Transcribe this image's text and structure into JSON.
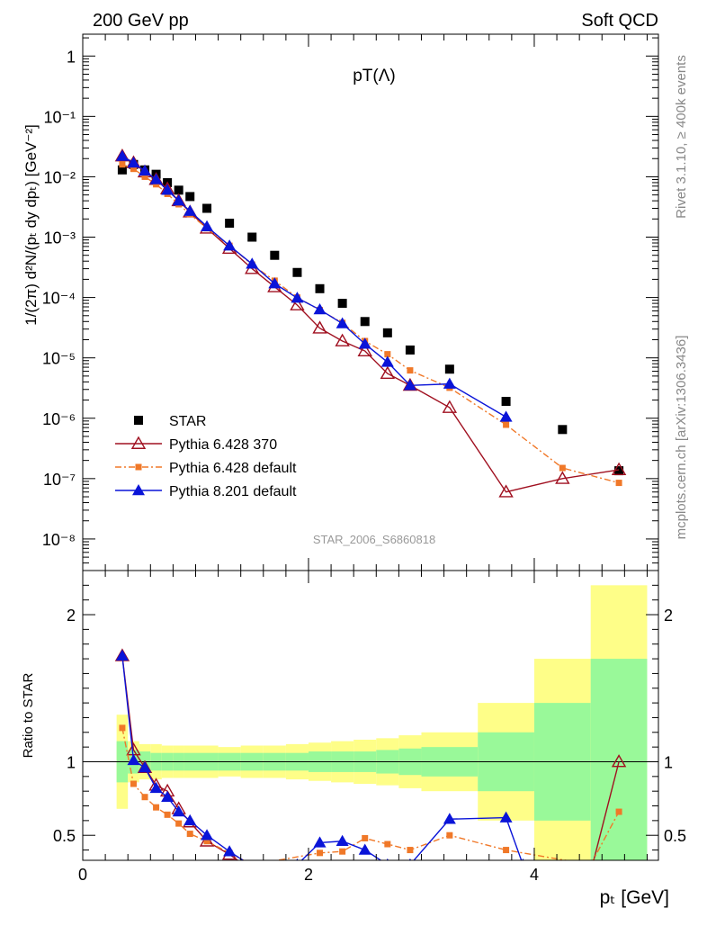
{
  "header": {
    "left": "200 GeV pp",
    "right": "Soft QCD"
  },
  "side": {
    "rivet": "Rivet 3.1.10, ≥ 400k events",
    "mcplots": "mcplots.cern.ch [arXiv:1306.3436]"
  },
  "chart_data": [
    {
      "type": "scatter",
      "title": "pT(Λ)",
      "watermark": "STAR_2006_S6860818",
      "ylabel": "1/(2π) d²N/(pₜ dy dpₜ) [GeV⁻²]",
      "xlim": [
        0,
        5.1
      ],
      "ylim": [
        3e-09,
        2.3
      ],
      "yscale": "log",
      "ytick_labels": [
        {
          "v": 1,
          "t": "1"
        },
        {
          "v": 0.1,
          "t": "10⁻¹"
        },
        {
          "v": 0.01,
          "t": "10⁻²"
        },
        {
          "v": 0.001,
          "t": "10⁻³"
        },
        {
          "v": 0.0001,
          "t": "10⁻⁴"
        },
        {
          "v": 1e-05,
          "t": "10⁻⁵"
        },
        {
          "v": 1e-06,
          "t": "10⁻⁶"
        },
        {
          "v": 1e-07,
          "t": "10⁻⁷"
        },
        {
          "v": 1e-08,
          "t": "10⁻⁸"
        }
      ],
      "legend_position": "bottom-left",
      "series": [
        {
          "name": "STAR",
          "color": "#000000",
          "marker": "square",
          "x": [
            0.35,
            0.45,
            0.55,
            0.65,
            0.75,
            0.85,
            0.95,
            1.1,
            1.3,
            1.5,
            1.7,
            1.9,
            2.1,
            2.3,
            2.5,
            2.7,
            2.9,
            3.25,
            3.75,
            4.25,
            4.75
          ],
          "y": [
            0.013,
            0.016,
            0.013,
            0.011,
            0.008,
            0.006,
            0.0047,
            0.003,
            0.0017,
            0.001,
            0.0005,
            0.00026,
            0.00014,
            8e-05,
            4e-05,
            2.6e-05,
            1.35e-05,
            6.5e-06,
            1.9e-06,
            6.5e-07,
            1.35e-07
          ]
        },
        {
          "name": "Pythia 6.428 370",
          "color": "#a01020",
          "marker": "triangle-open",
          "line": "solid",
          "x": [
            0.35,
            0.45,
            0.55,
            0.65,
            0.75,
            0.85,
            0.95,
            1.1,
            1.3,
            1.5,
            1.7,
            1.9,
            2.1,
            2.3,
            2.5,
            2.7,
            2.9,
            3.25,
            3.75,
            4.25,
            4.75
          ],
          "y": [
            0.022,
            0.017,
            0.012,
            0.009,
            0.0063,
            0.004,
            0.0026,
            0.0014,
            0.00065,
            0.0003,
            0.00015,
            7.5e-05,
            3.1e-05,
            1.9e-05,
            1.3e-05,
            5.5e-06,
            3.5e-06,
            1.5e-06,
            6e-08,
            1e-07,
            1.4e-07
          ]
        },
        {
          "name": "Pythia 6.428 default",
          "color": "#f07828",
          "marker": "square-small",
          "line": "dashdot",
          "x": [
            0.35,
            0.45,
            0.55,
            0.65,
            0.75,
            0.85,
            0.95,
            1.1,
            1.3,
            1.5,
            1.7,
            1.9,
            2.1,
            2.3,
            2.5,
            2.7,
            2.9,
            3.25,
            3.75,
            4.25,
            4.75
          ],
          "y": [
            0.016,
            0.0135,
            0.01,
            0.0075,
            0.0052,
            0.0035,
            0.0024,
            0.0014,
            0.00072,
            0.00035,
            0.00019,
            0.0001,
            6.2e-05,
            3.8e-05,
            1.9e-05,
            1.15e-05,
            6.2e-06,
            3.2e-06,
            7.8e-07,
            1.5e-07,
            8.5e-08
          ]
        },
        {
          "name": "Pythia 8.201 default",
          "color": "#0a14d8",
          "marker": "triangle",
          "line": "solid",
          "x": [
            0.35,
            0.45,
            0.55,
            0.65,
            0.75,
            0.85,
            0.95,
            1.1,
            1.3,
            1.5,
            1.7,
            1.9,
            2.1,
            2.3,
            2.5,
            2.7,
            2.9,
            3.25,
            3.75
          ],
          "y": [
            0.022,
            0.017,
            0.0125,
            0.009,
            0.006,
            0.004,
            0.0027,
            0.0015,
            0.00072,
            0.00036,
            0.00017,
            9.8e-05,
            6.3e-05,
            3.7e-05,
            1.7e-05,
            8.5e-06,
            3.5e-06,
            3.7e-06,
            1.05e-06
          ]
        }
      ]
    },
    {
      "type": "scatter",
      "ylabel": "Ratio to STAR",
      "xlabel": "pₜ [GeV]",
      "xlim": [
        0,
        5.1
      ],
      "ylim": [
        0.33,
        2.3
      ],
      "xtick_labels": [
        {
          "v": 0,
          "t": "0"
        },
        {
          "v": 2,
          "t": "2"
        },
        {
          "v": 4,
          "t": "4"
        }
      ],
      "ytick_labels": [
        {
          "v": 0.5,
          "t": "0.5"
        },
        {
          "v": 1,
          "t": "1"
        },
        {
          "v": 2,
          "t": "2"
        }
      ],
      "bands": {
        "edges": [
          0.3,
          0.4,
          0.5,
          0.6,
          0.7,
          0.8,
          0.9,
          1.0,
          1.2,
          1.4,
          1.6,
          1.8,
          2.0,
          2.2,
          2.4,
          2.6,
          2.8,
          3.0,
          3.5,
          4.0,
          4.5,
          5.0
        ],
        "inner_color": "#99f999",
        "outer_color": "#fefe88",
        "inner_half": [
          0.14,
          0.08,
          0.07,
          0.06,
          0.06,
          0.06,
          0.06,
          0.06,
          0.06,
          0.06,
          0.06,
          0.06,
          0.07,
          0.07,
          0.07,
          0.08,
          0.09,
          0.1,
          0.2,
          0.4,
          0.7
        ],
        "outer_half": [
          0.32,
          0.14,
          0.12,
          0.12,
          0.11,
          0.11,
          0.11,
          0.11,
          0.1,
          0.11,
          0.11,
          0.12,
          0.13,
          0.14,
          0.15,
          0.16,
          0.18,
          0.2,
          0.4,
          0.7,
          1.2
        ]
      },
      "series": [
        {
          "name": "Pythia 6.428 370",
          "color": "#a01020",
          "marker": "triangle-open",
          "line": "solid",
          "x": [
            0.35,
            0.45,
            0.55,
            0.65,
            0.75,
            0.85,
            0.95,
            1.1,
            1.3,
            1.5,
            4.5,
            4.75
          ],
          "y": [
            1.72,
            1.08,
            0.96,
            0.84,
            0.8,
            0.68,
            0.59,
            0.46,
            0.37,
            0.26,
            0.25,
            1.0
          ]
        },
        {
          "name": "Pythia 6.428 default",
          "color": "#f07828",
          "marker": "square-small",
          "line": "dashdot",
          "x": [
            0.35,
            0.45,
            0.55,
            0.65,
            0.75,
            0.85,
            0.95,
            1.1,
            1.3,
            1.5,
            2.1,
            2.3,
            2.5,
            2.7,
            2.9,
            3.25,
            3.75,
            4.5,
            4.75
          ],
          "y": [
            1.23,
            0.85,
            0.76,
            0.69,
            0.64,
            0.58,
            0.51,
            0.46,
            0.38,
            0.3,
            0.38,
            0.39,
            0.48,
            0.44,
            0.4,
            0.5,
            0.4,
            0.3,
            0.66
          ]
        },
        {
          "name": "Pythia 8.201 default",
          "color": "#0a14d8",
          "marker": "triangle",
          "line": "solid",
          "x": [
            0.35,
            0.45,
            0.55,
            0.65,
            0.75,
            0.85,
            0.95,
            1.1,
            1.3,
            1.5,
            1.9,
            2.1,
            2.3,
            2.5,
            2.7,
            2.9,
            3.25,
            3.75,
            3.9
          ],
          "y": [
            1.72,
            1.01,
            0.96,
            0.82,
            0.76,
            0.66,
            0.6,
            0.5,
            0.39,
            0.29,
            0.3,
            0.45,
            0.46,
            0.4,
            0.3,
            0.3,
            0.61,
            0.62,
            0.3
          ]
        }
      ]
    }
  ]
}
